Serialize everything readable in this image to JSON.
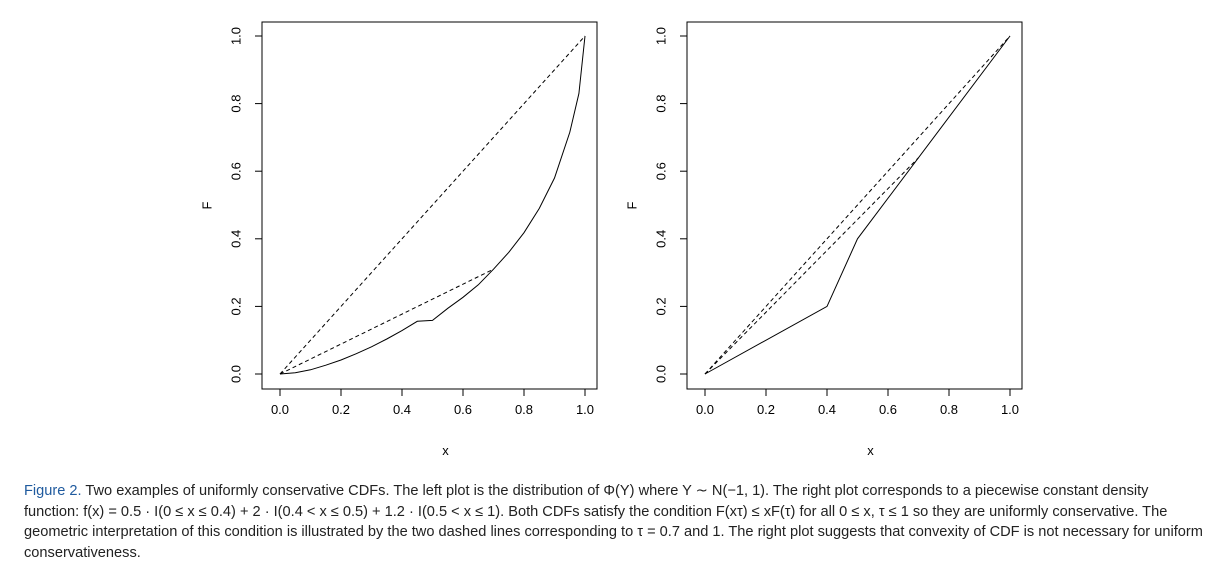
{
  "figure": {
    "label": "Figure 2.",
    "caption": "Two examples of uniformly conservative CDFs. The left plot is the distribution of Φ(Y) where Y ∼ N(−1, 1). The right plot corresponds to a piecewise constant density function: f(x) = 0.5 · I(0 ≤ x ≤ 0.4) + 2 · I(0.4 < x ≤ 0.5) + 1.2 · I(0.5 < x ≤ 1). Both CDFs satisfy the condition F(xτ) ≤ xF(τ) for all 0 ≤ x, τ ≤ 1 so they are uniformly conservative. The geometric interpretation of this condition is illustrated by the two dashed lines corresponding to τ = 0.7 and 1. The right plot suggests that convexity of CDF is not necessary for uniform conservativeness."
  },
  "chart_data": [
    {
      "type": "line",
      "xlabel": "x",
      "ylabel": "F",
      "xlim": [
        0,
        1
      ],
      "ylim": [
        0,
        1
      ],
      "x_ticks": [
        "0.0",
        "0.2",
        "0.4",
        "0.6",
        "0.8",
        "1.0"
      ],
      "y_ticks": [
        "0.0",
        "0.2",
        "0.4",
        "0.6",
        "0.8",
        "1.0"
      ],
      "grid": false,
      "series": [
        {
          "style": "solid",
          "x": [
            0,
            0.05,
            0.1,
            0.15,
            0.2,
            0.25,
            0.3,
            0.35,
            0.4,
            0.45,
            0.5,
            0.55,
            0.6,
            0.65,
            0.7,
            0.75,
            0.8,
            0.85,
            0.9,
            0.95,
            0.98,
            1.0
          ],
          "y": [
            0,
            0.0035,
            0.0125,
            0.026,
            0.0415,
            0.06,
            0.0805,
            0.1035,
            0.1285,
            0.156,
            0.1585,
            0.1945,
            0.227,
            0.264,
            0.31,
            0.36,
            0.418,
            0.49,
            0.58,
            0.715,
            0.83,
            1.0
          ]
        },
        {
          "style": "dashed",
          "x": [
            0,
            1.0
          ],
          "y": [
            0,
            1.0
          ]
        },
        {
          "style": "dashed",
          "x": [
            0,
            0.7
          ],
          "y": [
            0,
            0.31
          ]
        }
      ]
    },
    {
      "type": "line",
      "xlabel": "x",
      "ylabel": "F",
      "xlim": [
        0,
        1
      ],
      "ylim": [
        0,
        1
      ],
      "x_ticks": [
        "0.0",
        "0.2",
        "0.4",
        "0.6",
        "0.8",
        "1.0"
      ],
      "y_ticks": [
        "0.0",
        "0.2",
        "0.4",
        "0.6",
        "0.8",
        "1.0"
      ],
      "grid": false,
      "series": [
        {
          "style": "solid",
          "x": [
            0,
            0.4,
            0.5,
            1.0
          ],
          "y": [
            0,
            0.2,
            0.4,
            1.0
          ]
        },
        {
          "style": "dashed",
          "x": [
            0,
            1.0
          ],
          "y": [
            0,
            1.0
          ]
        },
        {
          "style": "dashed",
          "x": [
            0,
            0.7
          ],
          "y": [
            0,
            0.64
          ]
        }
      ]
    }
  ]
}
